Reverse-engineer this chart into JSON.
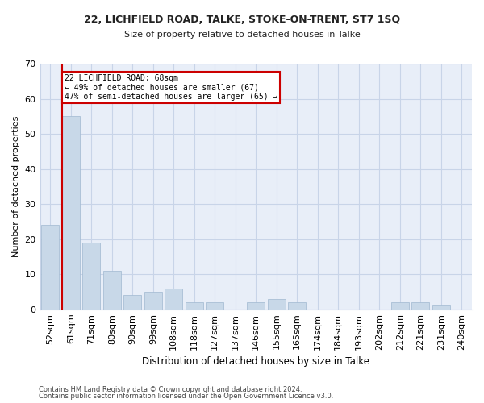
{
  "title1": "22, LICHFIELD ROAD, TALKE, STOKE-ON-TRENT, ST7 1SQ",
  "title2": "Size of property relative to detached houses in Talke",
  "xlabel": "Distribution of detached houses by size in Talke",
  "ylabel": "Number of detached properties",
  "categories": [
    "52sqm",
    "61sqm",
    "71sqm",
    "80sqm",
    "90sqm",
    "99sqm",
    "108sqm",
    "118sqm",
    "127sqm",
    "137sqm",
    "146sqm",
    "155sqm",
    "165sqm",
    "174sqm",
    "184sqm",
    "193sqm",
    "202sqm",
    "212sqm",
    "221sqm",
    "231sqm",
    "240sqm"
  ],
  "values": [
    24,
    55,
    19,
    11,
    4,
    5,
    6,
    2,
    2,
    0,
    2,
    3,
    2,
    0,
    0,
    0,
    0,
    2,
    2,
    1,
    0
  ],
  "bar_color": "#c8d8e8",
  "bar_edge_color": "#a0b8d0",
  "vline_color": "#cc0000",
  "vline_x_index": 1,
  "annotation_text": "22 LICHFIELD ROAD: 68sqm\n← 49% of detached houses are smaller (67)\n47% of semi-detached houses are larger (65) →",
  "annotation_box_color": "#ffffff",
  "annotation_box_edge_color": "#cc0000",
  "ylim": [
    0,
    70
  ],
  "yticks": [
    0,
    10,
    20,
    30,
    40,
    50,
    60,
    70
  ],
  "grid_color": "#c8d4e8",
  "bg_color": "#e8eef8",
  "footer1": "Contains HM Land Registry data © Crown copyright and database right 2024.",
  "footer2": "Contains public sector information licensed under the Open Government Licence v3.0."
}
